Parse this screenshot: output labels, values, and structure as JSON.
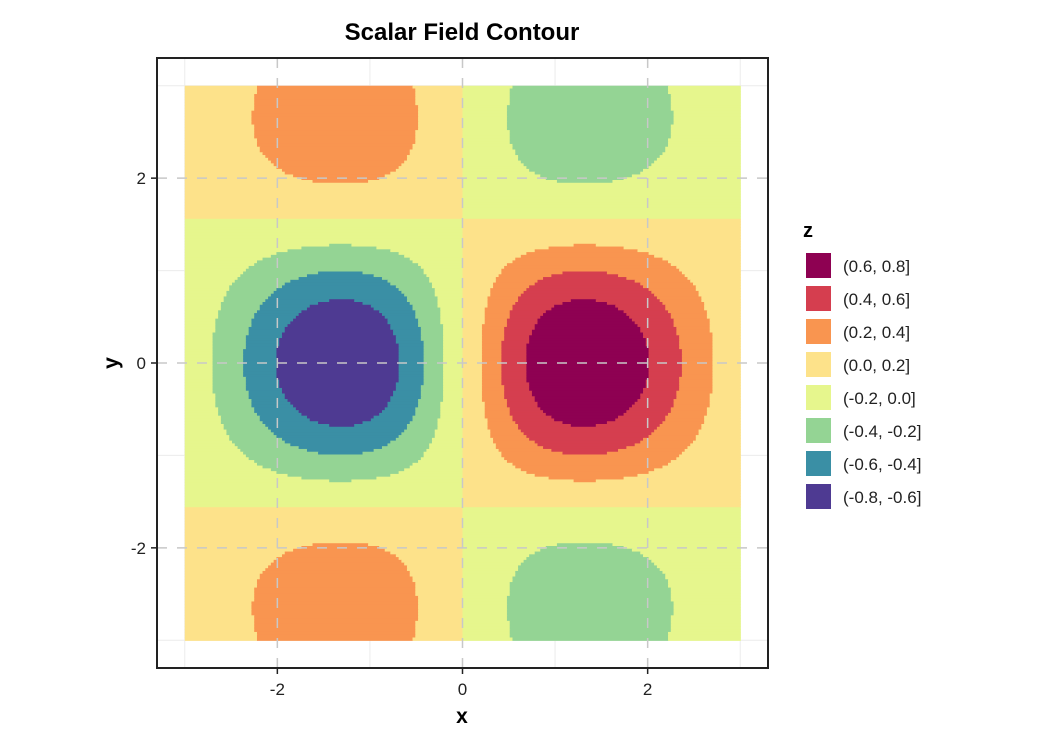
{
  "chart_data": {
    "type": "contour",
    "title": "Scalar Field Contour",
    "xlabel": "x",
    "ylabel": "y",
    "xlim": [
      -3,
      3
    ],
    "ylim": [
      -3,
      3
    ],
    "x_ticks": [
      -2,
      0,
      2
    ],
    "y_ticks": [
      -2,
      0,
      2
    ],
    "x_tick_labels": [
      "-2",
      "0",
      "2"
    ],
    "y_tick_labels": [
      "-2",
      "0",
      "2"
    ],
    "grid": true,
    "legend_position": "right",
    "legend_title": "z",
    "levels": [
      {
        "label": "(0.6, 0.8]",
        "min": 0.6,
        "max": 0.8,
        "color": "#8E0152"
      },
      {
        "label": "(0.4, 0.6]",
        "min": 0.4,
        "max": 0.6,
        "color": "#D53E4F"
      },
      {
        "label": "(0.2, 0.4]",
        "min": 0.2,
        "max": 0.4,
        "color": "#F99550"
      },
      {
        "label": "(0.0, 0.2]",
        "min": 0.0,
        "max": 0.2,
        "color": "#FDE28A"
      },
      {
        "label": "(-0.2, 0.0]",
        "min": -0.2,
        "max": 0.0,
        "color": "#E6F68D"
      },
      {
        "label": "(-0.4, -0.2]",
        "min": -0.4,
        "max": -0.2,
        "color": "#94D494"
      },
      {
        "label": "(-0.6, -0.4]",
        "min": -0.6,
        "max": -0.4,
        "color": "#3A8FA5"
      },
      {
        "label": "(-0.8, -0.6]",
        "min": -0.8,
        "max": -0.6,
        "color": "#4E3A92"
      }
    ],
    "field": "z = sin(x) * cos(y) * exp(-(x^2 + y^2) / 10)"
  }
}
